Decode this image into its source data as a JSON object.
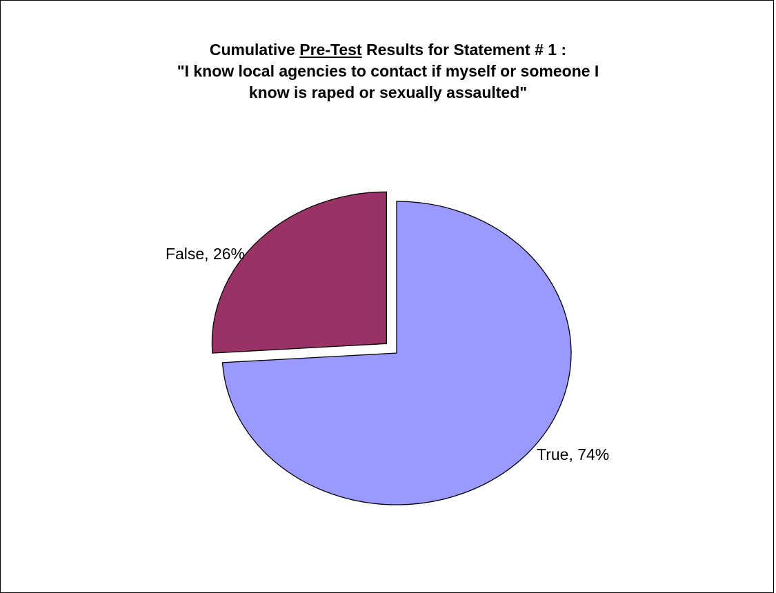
{
  "chart_data": {
    "type": "pie",
    "title": {
      "line1_prefix": "Cumulative ",
      "line1_underlined": "Pre-Test",
      "line1_suffix": " Results for Statement # 1 :",
      "line2": "\"I know local agencies to contact if myself or someone I",
      "line3": "know is raped or sexually assaulted\""
    },
    "slices": [
      {
        "label": "True",
        "value": 74,
        "display": "True, 74%",
        "color": "#9999ff",
        "exploded": false
      },
      {
        "label": "False",
        "value": 26,
        "display": "False, 26%",
        "color": "#993366",
        "exploded": true
      }
    ],
    "start_angle_deg": 0,
    "direction": "clockwise",
    "legend": "none"
  }
}
